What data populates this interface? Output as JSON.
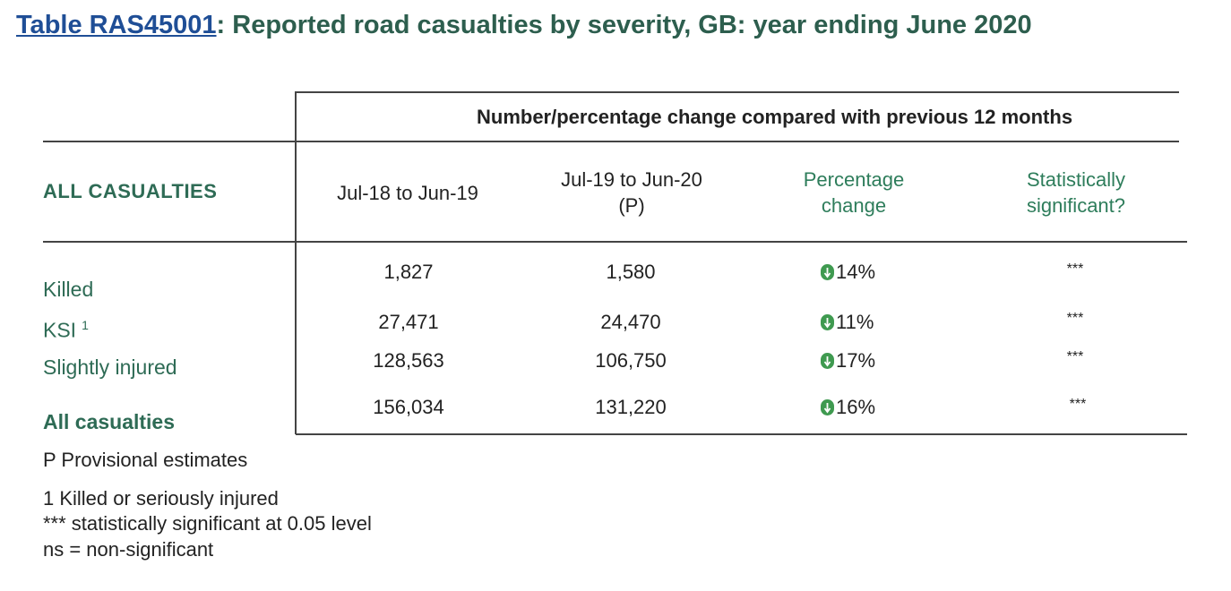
{
  "title": {
    "link_text": "Table RAS45001",
    "rest": ": Reported road casualties by severity, GB: year ending June 2020"
  },
  "table": {
    "group_header": "Number/percentage change compared with previous 12 months",
    "row_header": "ALL CASUALTIES",
    "columns": {
      "c1": "Jul-18 to Jun-19",
      "c2_line1": "Jul-19 to Jun-20",
      "c2_line2": "(P)",
      "c3_line1": "Percentage",
      "c3_line2": "change",
      "c4_line1": "Statistically",
      "c4_line2": "significant?"
    },
    "rows": [
      {
        "label": "Killed",
        "footnote": "",
        "v1": "1,827",
        "v2": "1,580",
        "pct": "14%",
        "sig": "***"
      },
      {
        "label": "KSI",
        "footnote": "1",
        "v1": "27,471",
        "v2": "24,470",
        "pct": "11%",
        "sig": "***"
      },
      {
        "label": "Slightly injured",
        "footnote": "",
        "v1": "128,563",
        "v2": "106,750",
        "pct": "17%",
        "sig": "***"
      },
      {
        "label": "All casualties",
        "footnote": "",
        "v1": "156,034",
        "v2": "131,220",
        "pct": "16%",
        "sig": "***"
      }
    ],
    "arrow_icon": "down-arrow-icon",
    "arrow_color": "#3f9a50"
  },
  "footnotes": [
    "P Provisional estimates",
    "1 Killed or seriously injured",
    "*** statistically significant at 0.05 level",
    "ns = non-significant"
  ]
}
